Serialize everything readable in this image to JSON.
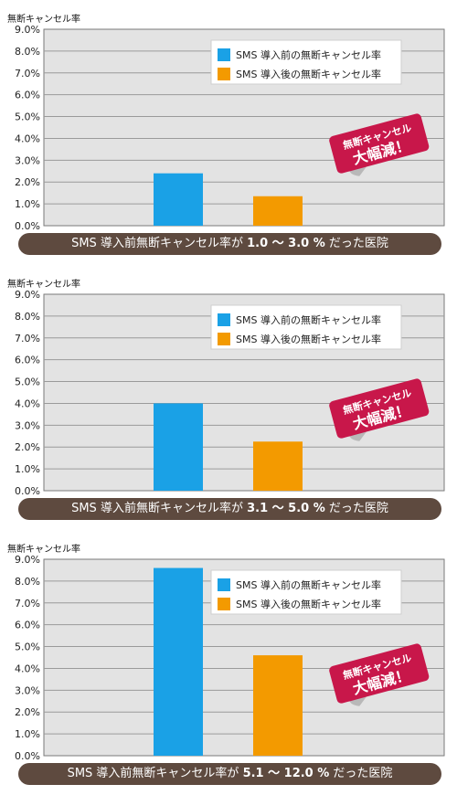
{
  "charts": [
    {
      "range_text": "1.0 ～ 3.0 %",
      "chart_data": {
        "type": "bar",
        "ylabel": "無断キャンセル率",
        "ylim": [
          0,
          9
        ],
        "yticks": [
          "0.0%",
          "1.0%",
          "2.0%",
          "3.0%",
          "4.0%",
          "5.0%",
          "6.0%",
          "7.0%",
          "8.0%",
          "9.0%"
        ],
        "series": [
          {
            "name": "SMS 導入前の無断キャンセル率",
            "value": 2.4,
            "color": "#1aa1e6"
          },
          {
            "name": "SMS 導入後の無断キャンセル率",
            "value": 1.35,
            "color": "#f39a00"
          }
        ],
        "legend": "top-right",
        "grid": true
      }
    },
    {
      "range_text": "3.1 ～ 5.0 %",
      "chart_data": {
        "type": "bar",
        "ylabel": "無断キャンセル率",
        "ylim": [
          0,
          9
        ],
        "yticks": [
          "0.0%",
          "1.0%",
          "2.0%",
          "3.0%",
          "4.0%",
          "5.0%",
          "6.0%",
          "7.0%",
          "8.0%",
          "9.0%"
        ],
        "series": [
          {
            "name": "SMS 導入前の無断キャンセル率",
            "value": 4.0,
            "color": "#1aa1e6"
          },
          {
            "name": "SMS 導入後の無断キャンセル率",
            "value": 2.25,
            "color": "#f39a00"
          }
        ],
        "legend": "top-right",
        "grid": true
      }
    },
    {
      "range_text": "5.1 ～ 12.0 %",
      "chart_data": {
        "type": "bar",
        "ylabel": "無断キャンセル率",
        "ylim": [
          0,
          9
        ],
        "yticks": [
          "0.0%",
          "1.0%",
          "2.0%",
          "3.0%",
          "4.0%",
          "5.0%",
          "6.0%",
          "7.0%",
          "8.0%",
          "9.0%"
        ],
        "series": [
          {
            "name": "SMS 導入前の無断キャンセル率",
            "value": 8.6,
            "color": "#1aa1e6"
          },
          {
            "name": "SMS 導入後の無断キャンセル率",
            "value": 4.6,
            "color": "#f39a00"
          }
        ],
        "legend": "top-right",
        "grid": true
      }
    }
  ],
  "banner_prefix": "SMS 導入前無断キャンセル率が ",
  "banner_suffix": " だった医院",
  "badge": {
    "line1": "無断キャンセル",
    "line2": "大幅減！"
  },
  "colors": {
    "plot_bg": "#e3e3e3",
    "grid": "#9a9a9a",
    "banner": "#5e4a3f",
    "badge": "#c8174a"
  }
}
